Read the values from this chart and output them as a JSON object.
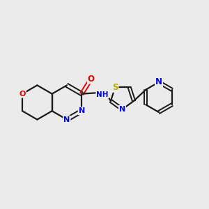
{
  "background_color": "#ebebeb",
  "bond_color": "#1a1a1a",
  "atom_colors": {
    "N": "#0000e0",
    "O": "#dd0000",
    "S": "#bbaa00",
    "C": "#1a1a1a",
    "H": "#1a1a1a"
  },
  "figsize": [
    3.0,
    3.0
  ],
  "dpi": 100
}
